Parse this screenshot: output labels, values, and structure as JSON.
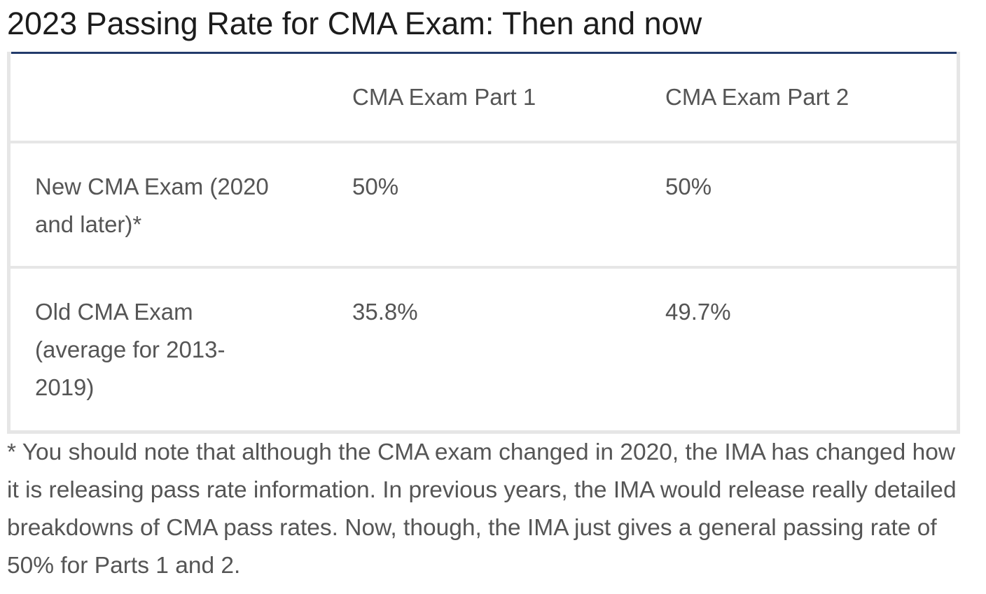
{
  "title": "2023 Passing Rate for CMA Exam: Then and now",
  "table": {
    "headers": [
      "",
      "CMA Exam Part 1",
      "CMA Exam Part 2"
    ],
    "rows": [
      {
        "label": "New CMA Exam (2020 and later)*",
        "part1": "50%",
        "part2": "50%"
      },
      {
        "label": "Old CMA Exam (average for 2013-2019)",
        "part1": "35.8%",
        "part2": "49.7%"
      }
    ]
  },
  "footnote": "* You should note that although the CMA exam changed in 2020, the IMA has changed how it is releasing pass rate information. In previous years, the IMA would release really detailed breakdowns of CMA pass rates. Now, though, the IMA just gives a general passing rate of 50% for Parts 1 and 2.",
  "colors": {
    "title_text": "#1c1c1c",
    "body_text": "#555555",
    "rule": "#233b6b",
    "table_border": "#e6e6e6"
  }
}
